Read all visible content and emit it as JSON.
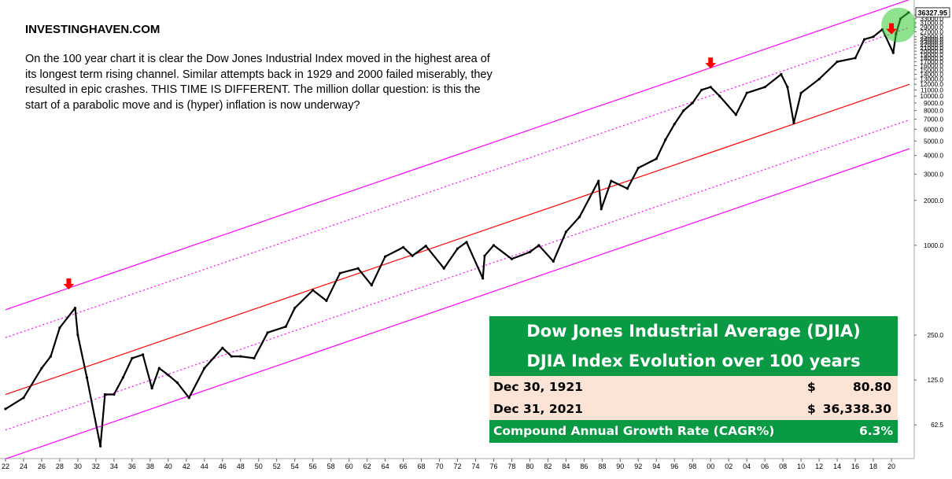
{
  "brand": "INVESTINGHAVEN.COM",
  "description": "On the 100 year chart it is clear the Dow Jones Industrial Index moved in the highest area of its longest term rising channel. Similar attempts back in 1929 and 2000 failed miserably, they resulted in epic crashes. THIS TIME IS DIFFERENT. The million dollar question: is this the start of a parabolic move and is (hyper) inflation is now underway?",
  "panel": {
    "title": "Dow Jones Industrial Average (DJIA)",
    "subtitle": "DJIA Index Evolution over 100 years",
    "rows": [
      {
        "label": "Dec 30, 1921",
        "currency": "$",
        "value": "80.80"
      },
      {
        "label": "Dec 31, 2021",
        "currency": "$",
        "value": "36,338.30"
      }
    ],
    "cagr": {
      "label": "Compound Annual Growth Rate (CAGR%)",
      "value": "6.3%"
    }
  },
  "colors": {
    "price": "#000000",
    "channel": "#ff00ff",
    "midline": "#ff0000",
    "arrow": "#ff0000",
    "highlight": "#33cc33",
    "panel_green": "#0a9a43",
    "panel_peach": "#fbe3d6"
  },
  "chart_data": {
    "type": "line",
    "scale": "log",
    "x_start": 1922,
    "x_end": 2022,
    "ylim": [
      40,
      40000
    ],
    "x_ticks": [
      "22",
      "24",
      "26",
      "28",
      "30",
      "32",
      "34",
      "36",
      "38",
      "40",
      "42",
      "44",
      "46",
      "48",
      "50",
      "52",
      "54",
      "56",
      "58",
      "60",
      "62",
      "64",
      "66",
      "68",
      "70",
      "72",
      "74",
      "76",
      "78",
      "80",
      "82",
      "84",
      "86",
      "88",
      "90",
      "92",
      "94",
      "96",
      "98",
      "00",
      "02",
      "04",
      "06",
      "08",
      "10",
      "12",
      "14",
      "16",
      "18",
      "20"
    ],
    "y_ticks": [
      "62.5",
      "125.0",
      "250.0",
      "1000.0",
      "2000.0",
      "3000.0",
      "4000.0",
      "5000.0",
      "6000.0",
      "7000.0",
      "8000.0",
      "9000.0",
      "10000.0",
      "11000.0",
      "12000.0",
      "13000.0",
      "14000.0",
      "15000.0",
      "16000.0",
      "17000.0",
      "18000.0",
      "19000.0",
      "20000.0",
      "21000.0",
      "22000.0",
      "23000.0",
      "24000.0",
      "25000.0",
      "26000.0",
      "27000.0",
      "28000.0",
      "29000.0",
      "30000.0",
      "31000.0",
      "32000.0",
      "33000.0",
      "34000.0",
      "35000.0",
      "36000.0"
    ],
    "last_price_label": "36327.95",
    "series": [
      {
        "x": [
          1922,
          1924,
          1926,
          1927,
          1928,
          1929.7,
          1930,
          1931,
          1932.5,
          1933,
          1934,
          1935,
          1936,
          1937.2,
          1938.2,
          1939,
          1940,
          1941,
          1942.3,
          1944,
          1946,
          1947,
          1948,
          1949.5,
          1951,
          1953,
          1954,
          1956,
          1957.5,
          1959,
          1961,
          1962.5,
          1964,
          1966,
          1967,
          1968.5,
          1970.5,
          1972,
          1973,
          1974.8,
          1975,
          1976,
          1978,
          1980,
          1981,
          1982.6,
          1984,
          1985.5,
          1987.6,
          1987.9,
          1989,
          1990.8,
          1992,
          1994,
          1995,
          1996,
          1997,
          1998,
          1999,
          2000,
          2001,
          2002.8,
          2004,
          2006,
          2007.8,
          2008.5,
          2009.2,
          2010,
          2012,
          2014,
          2016,
          2017,
          2018,
          2019,
          2020.2,
          2020.5,
          2021,
          2021.9
        ],
        "values": [
          80,
          95,
          150,
          180,
          280,
          380,
          250,
          130,
          45,
          100,
          100,
          130,
          175,
          185,
          110,
          150,
          135,
          120,
          95,
          150,
          205,
          180,
          180,
          175,
          260,
          285,
          380,
          500,
          425,
          650,
          700,
          540,
          840,
          970,
          850,
          990,
          700,
          950,
          1050,
          600,
          850,
          1000,
          810,
          900,
          1000,
          780,
          1230,
          1550,
          2700,
          1750,
          2700,
          2400,
          3300,
          3800,
          5100,
          6500,
          8000,
          9000,
          11000,
          11500,
          10000,
          7500,
          10500,
          11500,
          14000,
          11500,
          6600,
          10500,
          13000,
          17000,
          18000,
          24000,
          25000,
          28000,
          19500,
          26000,
          33000,
          36338
        ]
      }
    ],
    "peaks_marked": [
      1929,
      2000,
      2020
    ],
    "channel": {
      "center": {
        "1922": 100,
        "2022": 12000
      },
      "upper_factor": 3.7,
      "lower_factor": 0.37
    }
  }
}
